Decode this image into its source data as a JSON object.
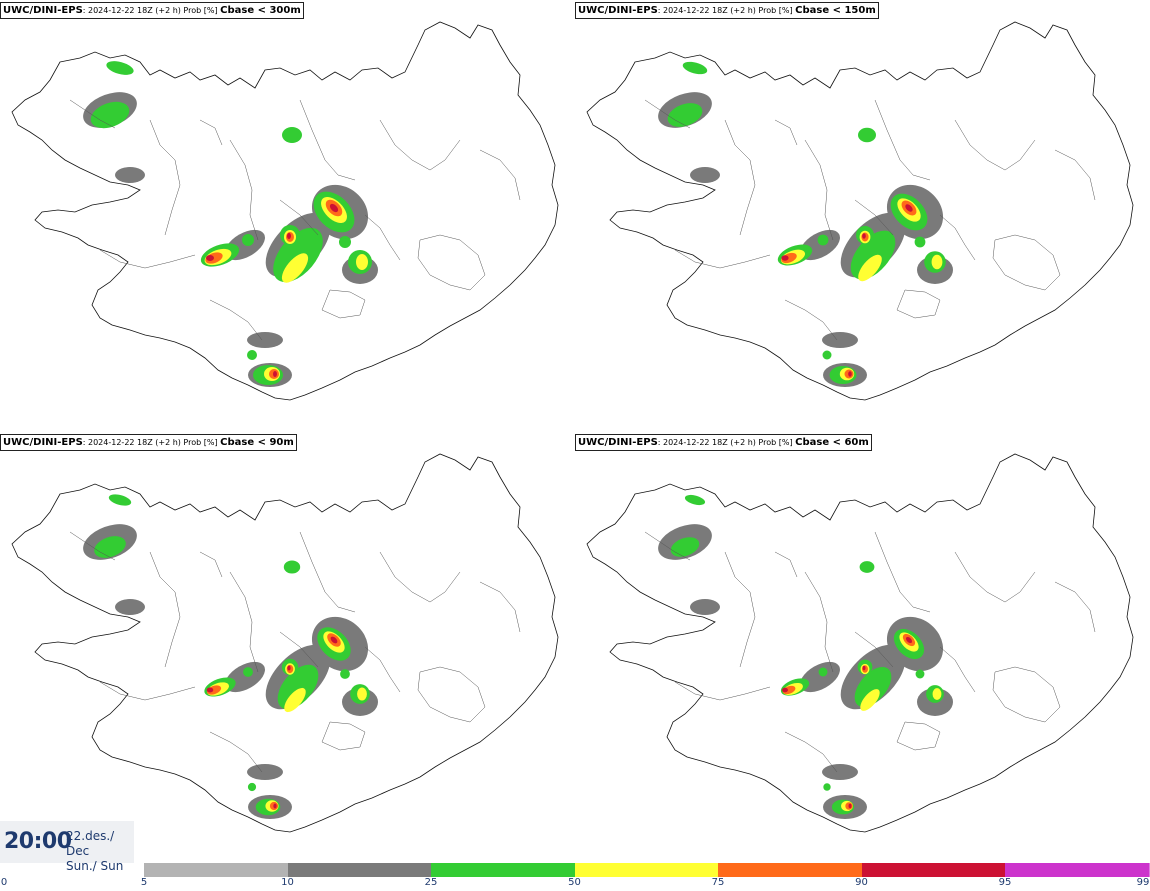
{
  "panels": [
    {
      "model": "UWC/DINI-EPS",
      "meta": ": 2024-12-22 18Z (+2 h) Prob [%] ",
      "var": "Cbase < 300m"
    },
    {
      "model": "UWC/DINI-EPS",
      "meta": ": 2024-12-22 18Z (+2 h) Prob [%] ",
      "var": "Cbase < 150m"
    },
    {
      "model": "UWC/DINI-EPS",
      "meta": ": 2024-12-22 18Z (+2 h) Prob [%] ",
      "var": "Cbase < 90m"
    },
    {
      "model": "UWC/DINI-EPS",
      "meta": ": 2024-12-22 18Z (+2 h) Prob [%] ",
      "var": "Cbase < 60m"
    }
  ],
  "valid_time": {
    "time": "20:00",
    "date_line1": "22.des./ Dec",
    "date_line2": "Sun./ Sun"
  },
  "legend": {
    "ticks": [
      "0",
      "5",
      "10",
      "25",
      "50",
      "75",
      "90",
      "95",
      "99"
    ],
    "colors": [
      "#b3b3b3",
      "#7a7a7a",
      "#33cc33",
      "#ffff33",
      "#ff6a1a",
      "#cc1133",
      "#cc33cc",
      "#f2c3f2"
    ]
  },
  "colors": {
    "gray_light": "#b3b3b3",
    "gray_dark": "#7a7a7a",
    "green": "#33cc33",
    "yellow": "#ffff33",
    "orange": "#ff6a1a",
    "red": "#cc1133",
    "outline": "#111111",
    "label": "#1e3a6e"
  }
}
